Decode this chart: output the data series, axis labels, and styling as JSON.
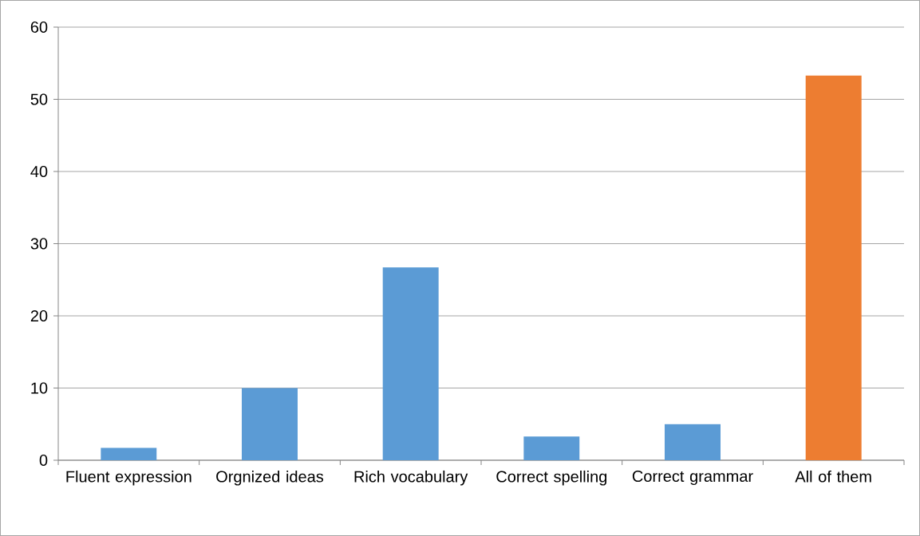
{
  "chart_data": {
    "type": "bar",
    "categories": [
      "Fluent expression",
      "Orgnized ideas",
      "Rich vocabulary",
      "Correct spelling",
      "Correct grammar",
      "All of them"
    ],
    "values": [
      1.7,
      10,
      26.7,
      3.3,
      5,
      53.3
    ],
    "colors": [
      "#5b9bd5",
      "#5b9bd5",
      "#5b9bd5",
      "#5b9bd5",
      "#5b9bd5",
      "#ed7d31"
    ],
    "ylim": [
      0,
      60
    ],
    "yticks": [
      0,
      10,
      20,
      30,
      40,
      50,
      60
    ],
    "grid": "y"
  }
}
